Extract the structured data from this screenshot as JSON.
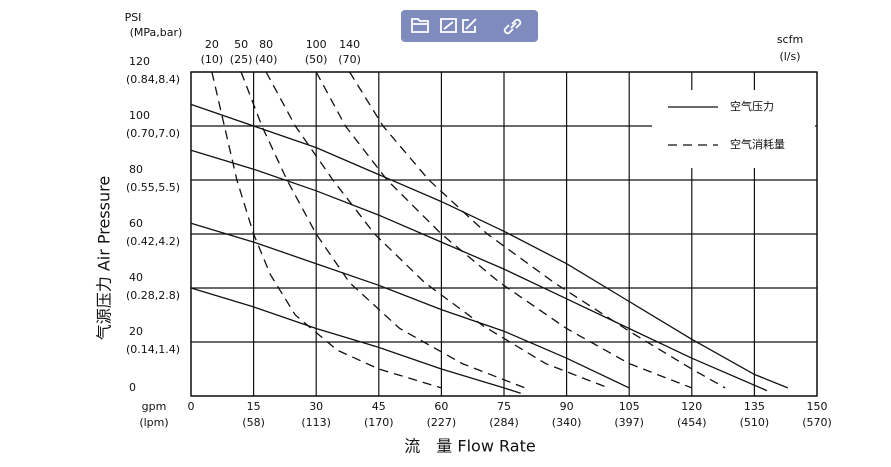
{
  "chart_data": {
    "type": "line",
    "y_unit_label": "PSI",
    "y_unit_sublabel": "(MPa,bar)",
    "x_unit_label": "gpm",
    "x_unit_sublabel": "(lpm)",
    "top_unit_label": "scfm",
    "top_unit_sublabel": "(l/s)",
    "y_title": "气源压力  Air Pressure",
    "x_title": "流　量  Flow Rate",
    "xlim": [
      0,
      150
    ],
    "ylim": [
      0,
      120
    ],
    "xticks": [
      0,
      15,
      30,
      45,
      60,
      75,
      90,
      105,
      120,
      135,
      150
    ],
    "xtick_sublabels": [
      null,
      "(58)",
      "(113)",
      "(170)",
      "(227)",
      "(284)",
      "(340)",
      "(397)",
      "(454)",
      "(510)",
      "(570)"
    ],
    "yticks": [
      0,
      20,
      40,
      60,
      80,
      100,
      120
    ],
    "ytick_sublabels": [
      null,
      "(0.14,1.4)",
      "(0.28,2.8)",
      "(0.42,4.2)",
      "(0.55,5.5)",
      "(0.70,7.0)",
      "(0.84,8.4)"
    ],
    "grid": true,
    "color": "#111111",
    "legend": [
      {
        "label": "空气压力",
        "dashed": false
      },
      {
        "label": "空气消耗量",
        "dashed": true
      }
    ],
    "series": [
      {
        "dashed": false,
        "x": [
          0,
          15,
          30,
          45,
          60,
          75,
          90,
          105,
          120,
          135,
          143
        ],
        "values": [
          108,
          100,
          92,
          82,
          72,
          61,
          49,
          35,
          21,
          8,
          3
        ]
      },
      {
        "dashed": false,
        "x": [
          0,
          15,
          30,
          45,
          60,
          75,
          90,
          105,
          120,
          138
        ],
        "values": [
          91,
          84,
          76,
          67,
          57,
          47,
          36,
          25,
          14,
          2
        ]
      },
      {
        "dashed": false,
        "x": [
          0,
          15,
          30,
          45,
          60,
          75,
          90,
          105
        ],
        "values": [
          64,
          57,
          49,
          41,
          32,
          24,
          14,
          3
        ]
      },
      {
        "dashed": false,
        "x": [
          0,
          15,
          30,
          45,
          60,
          75,
          79
        ],
        "values": [
          40,
          33,
          25,
          18,
          10,
          3,
          1
        ]
      },
      {
        "dashed": true,
        "top_label": "20",
        "top_sublabel": "(10)",
        "x": [
          5,
          8,
          11,
          15,
          19,
          25,
          35,
          45,
          60
        ],
        "values": [
          120,
          100,
          80,
          60,
          45,
          30,
          17,
          10,
          3
        ]
      },
      {
        "dashed": true,
        "top_label": "50",
        "top_sublabel": "(25)",
        "x": [
          12,
          17,
          23,
          30,
          38,
          50,
          65,
          80
        ],
        "values": [
          120,
          100,
          80,
          60,
          42,
          25,
          12,
          3
        ]
      },
      {
        "dashed": true,
        "top_label": "80",
        "top_sublabel": "(40)",
        "x": [
          18,
          25,
          34,
          44,
          56,
          70,
          85,
          100
        ],
        "values": [
          120,
          100,
          80,
          60,
          42,
          26,
          12,
          3
        ]
      },
      {
        "dashed": true,
        "top_label": "100",
        "top_sublabel": "(50)",
        "x": [
          30,
          37,
          47,
          60,
          74,
          90,
          105,
          120
        ],
        "values": [
          120,
          100,
          80,
          60,
          42,
          25,
          12,
          3
        ]
      },
      {
        "dashed": true,
        "top_label": "140",
        "top_sublabel": "(70)",
        "x": [
          38,
          46,
          57,
          71,
          87,
          105,
          120,
          128
        ],
        "values": [
          120,
          100,
          80,
          60,
          42,
          24,
          10,
          3
        ]
      }
    ]
  }
}
